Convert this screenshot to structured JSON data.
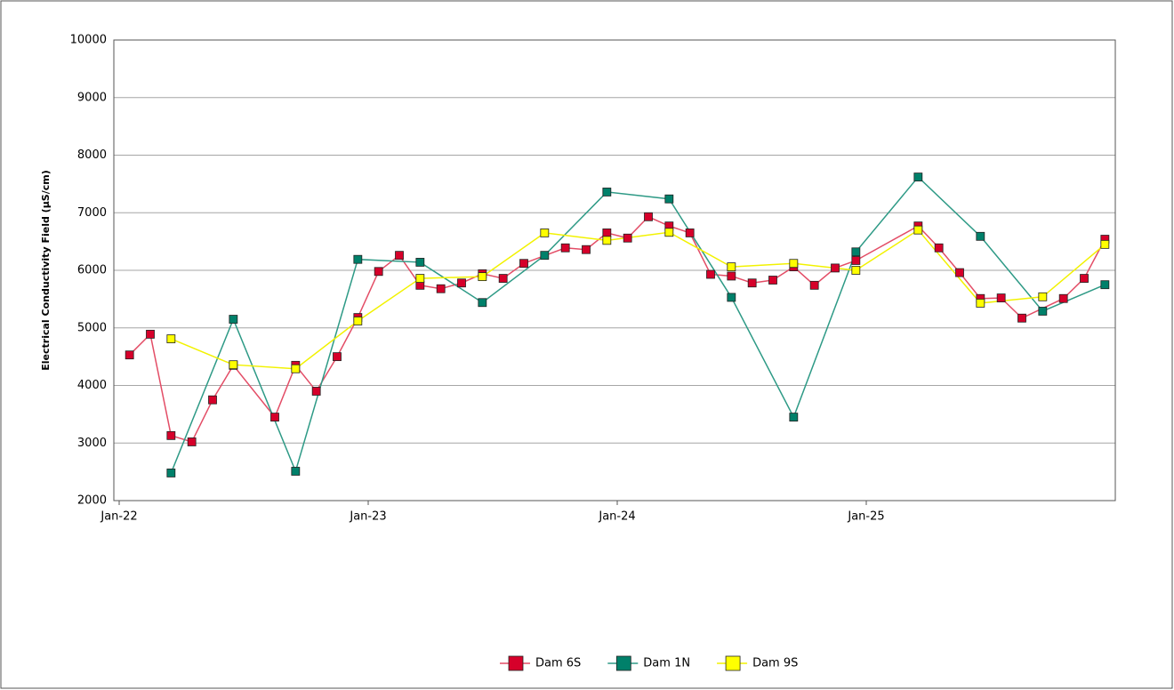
{
  "chart_data": {
    "type": "line",
    "ylabel": "Electrical Conductivity Field (µS/cm)",
    "xlim": [
      "2022-01",
      "2026-01"
    ],
    "xticks": [
      {
        "value": "2022-01",
        "label": "Jan-22"
      },
      {
        "value": "2023-01",
        "label": "Jan-23"
      },
      {
        "value": "2024-01",
        "label": "Jan-24"
      },
      {
        "value": "2025-01",
        "label": "Jan-25"
      }
    ],
    "ylim": [
      2000,
      10000
    ],
    "yticks": [
      2000,
      3000,
      4000,
      5000,
      6000,
      7000,
      8000,
      9000,
      10000
    ],
    "grid": true,
    "legend": "bottom",
    "series": [
      {
        "name": "Dam 6S",
        "color": "#d6002a",
        "line_color": "#e34d66",
        "x": [
          "2022-01",
          "2022-02",
          "2022-03",
          "2022-04",
          "2022-05",
          "2022-06",
          "2022-08",
          "2022-09",
          "2022-10",
          "2022-11",
          "2022-12",
          "2023-01",
          "2023-02",
          "2023-03",
          "2023-04",
          "2023-05",
          "2023-06",
          "2023-07",
          "2023-08",
          "2023-10",
          "2023-11",
          "2023-12",
          "2024-01",
          "2024-02",
          "2024-03",
          "2024-04",
          "2024-05",
          "2024-06",
          "2024-07",
          "2024-08",
          "2024-09",
          "2024-10",
          "2024-11",
          "2024-12",
          "2025-03",
          "2025-04",
          "2025-05",
          "2025-06",
          "2025-07",
          "2025-08",
          "2025-10",
          "2025-11",
          "2025-12"
        ],
        "values": [
          4530,
          4890,
          3130,
          3020,
          3750,
          4350,
          3450,
          4350,
          3900,
          4500,
          5180,
          5980,
          6260,
          5740,
          5680,
          5780,
          5940,
          5860,
          6120,
          6390,
          6360,
          6650,
          6560,
          6930,
          6770,
          6650,
          5930,
          5900,
          5780,
          5830,
          6060,
          5740,
          6040,
          6170,
          6770,
          6390,
          5960,
          5510,
          5520,
          5170,
          5510,
          5860,
          6540
        ]
      },
      {
        "name": "Dam 1N",
        "color": "#00806a",
        "line_color": "#2e9a86",
        "x": [
          "2022-03",
          "2022-06",
          "2022-09",
          "2022-12",
          "2023-03",
          "2023-06",
          "2023-09",
          "2023-12",
          "2024-03",
          "2024-06",
          "2024-09",
          "2024-12",
          "2025-03",
          "2025-06",
          "2025-09",
          "2025-12"
        ],
        "values": [
          2480,
          5150,
          2510,
          6190,
          6140,
          5440,
          6260,
          7360,
          7240,
          5530,
          3450,
          6320,
          7620,
          6590,
          5290,
          5750
        ]
      },
      {
        "name": "Dam 9S",
        "color": "#ffff00",
        "line_color": "#f2f200",
        "x": [
          "2022-03",
          "2022-06",
          "2022-09",
          "2022-12",
          "2023-03",
          "2023-06",
          "2023-09",
          "2023-12",
          "2024-03",
          "2024-06",
          "2024-09",
          "2024-12",
          "2025-03",
          "2025-06",
          "2025-09",
          "2025-12"
        ],
        "values": [
          4810,
          4360,
          4290,
          5120,
          5860,
          5890,
          6650,
          6520,
          6660,
          6060,
          6120,
          6000,
          6700,
          5430,
          5540,
          6450
        ]
      }
    ]
  }
}
